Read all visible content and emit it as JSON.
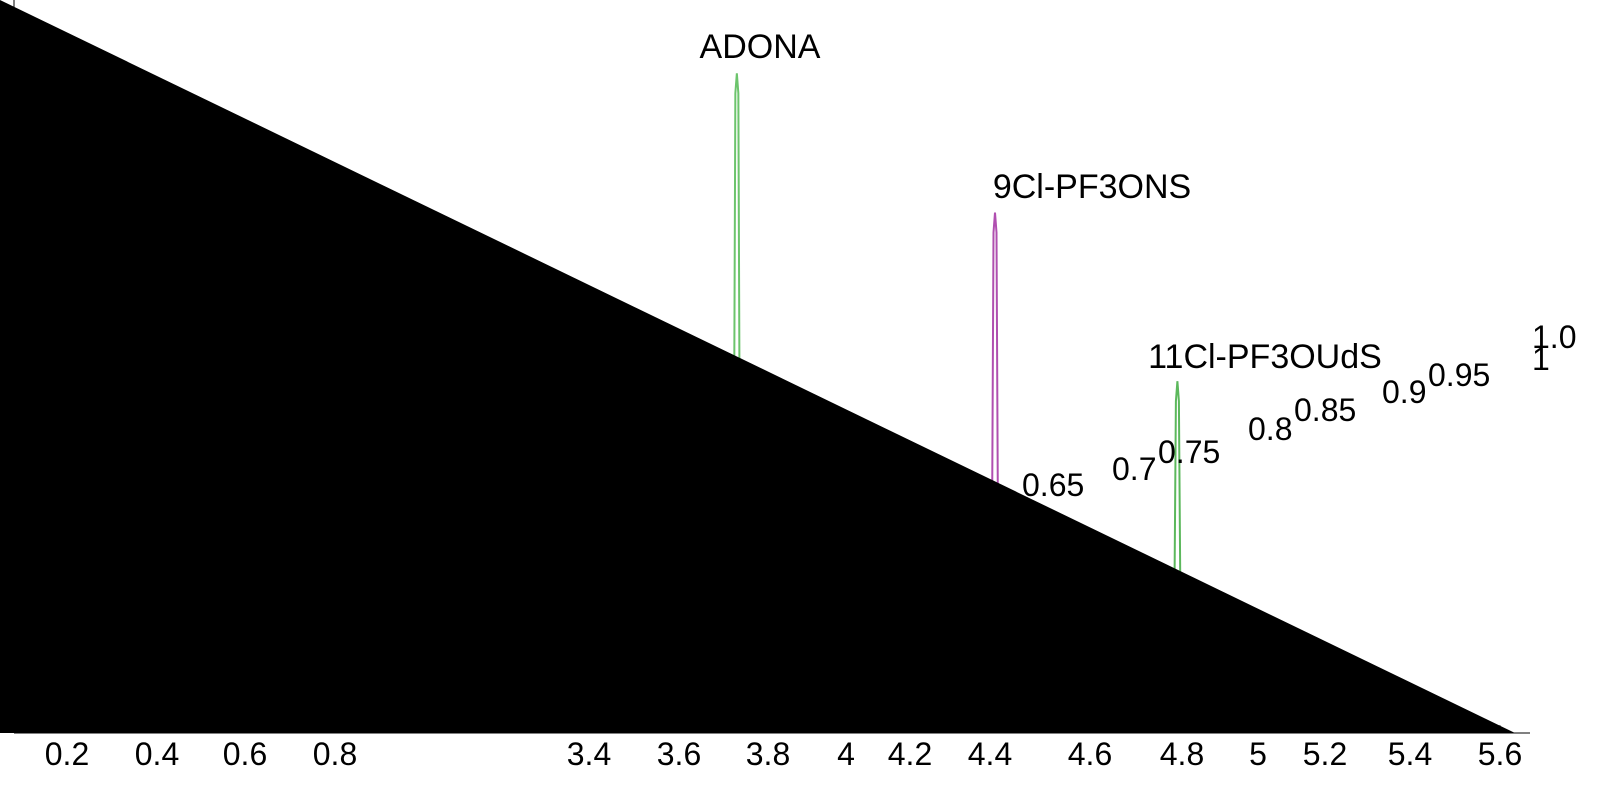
{
  "chart_data": {
    "type": "chromatogram",
    "peaks": [
      {
        "name": "ADONA",
        "x": 3.73,
        "value": 90,
        "color": "#6cc46c"
      },
      {
        "name": "9Cl-PF3ONS",
        "x": 4.41,
        "value": 71,
        "color": "#b04fb0"
      },
      {
        "name": "11Cl-PF3OUdS",
        "x": 4.79,
        "value": 48,
        "color": "#5cb85c"
      }
    ],
    "ylim": [
      0,
      100
    ],
    "xticks": [
      0.2,
      0.4,
      0.6,
      0.8,
      3.4,
      3.6,
      3.8,
      4,
      4.2,
      4.4,
      4.6,
      4.8,
      5,
      5.2,
      5.4,
      5.6
    ],
    "overlay_labels": [
      "0.65",
      "0.7",
      "0.75",
      "0.8",
      "0.85",
      "0.9",
      "0.95",
      "1",
      "1.0"
    ]
  }
}
